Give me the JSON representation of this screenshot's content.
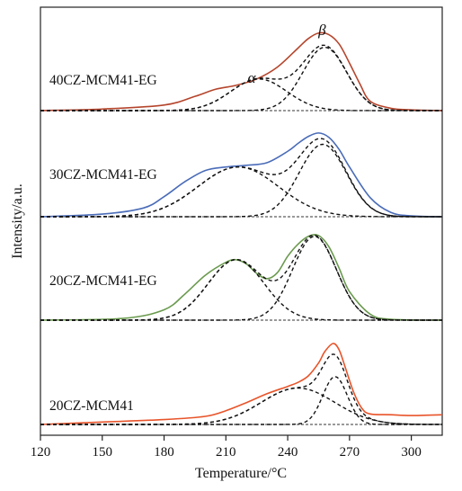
{
  "chart_data": {
    "type": "line",
    "xlabel": "Temperature/°C",
    "ylabel": "Intensity/a.u.",
    "xlim": [
      120,
      315
    ],
    "xticks": [
      120,
      150,
      180,
      210,
      240,
      270,
      300
    ],
    "grid": false,
    "legend": "none",
    "fit_line_color": "#111111",
    "panels": [
      {
        "name": "40CZ-MCM41-EG",
        "color": "#b5452c",
        "experimental": {
          "x": [
            120,
            150,
            180,
            195,
            205,
            215,
            225,
            235,
            245,
            250,
            255,
            260,
            265,
            270,
            275,
            280,
            290,
            300,
            315
          ],
          "y": [
            0.0,
            0.02,
            0.07,
            0.18,
            0.27,
            0.32,
            0.4,
            0.55,
            0.79,
            0.91,
            0.98,
            0.96,
            0.84,
            0.6,
            0.34,
            0.12,
            0.03,
            0.01,
            0.0
          ]
        },
        "peaks": [
          {
            "name": "α",
            "label": "α",
            "center": 226,
            "height": 0.4,
            "width": 32
          },
          {
            "name": "β",
            "label": "β",
            "center": 258,
            "height": 0.8,
            "width": 25
          }
        ]
      },
      {
        "name": "30CZ-MCM41-EG",
        "color": "#4a6cb8",
        "experimental": {
          "x": [
            120,
            150,
            170,
            180,
            190,
            200,
            210,
            220,
            230,
            240,
            245,
            250,
            255,
            260,
            265,
            270,
            280,
            290,
            300,
            315
          ],
          "y": [
            0.0,
            0.03,
            0.1,
            0.23,
            0.4,
            0.53,
            0.57,
            0.59,
            0.62,
            0.75,
            0.84,
            0.92,
            0.96,
            0.91,
            0.77,
            0.57,
            0.22,
            0.05,
            0.01,
            0.0
          ]
        },
        "peaks": [
          {
            "name": "α",
            "label": "",
            "center": 216,
            "height": 0.57,
            "width": 46
          },
          {
            "name": "β",
            "label": "",
            "center": 257,
            "height": 0.83,
            "width": 27
          }
        ]
      },
      {
        "name": "20CZ-MCM41-EG",
        "color": "#6a9a4e",
        "experimental": {
          "x": [
            120,
            160,
            180,
            190,
            200,
            210,
            215,
            220,
            225,
            230,
            235,
            240,
            245,
            250,
            255,
            260,
            265,
            270,
            280,
            290,
            315
          ],
          "y": [
            0.0,
            0.02,
            0.12,
            0.3,
            0.52,
            0.67,
            0.7,
            0.65,
            0.54,
            0.48,
            0.55,
            0.74,
            0.88,
            0.97,
            0.98,
            0.85,
            0.6,
            0.33,
            0.07,
            0.01,
            0.0
          ]
        },
        "peaks": [
          {
            "name": "α",
            "label": "",
            "center": 215,
            "height": 0.7,
            "width": 32
          },
          {
            "name": "β",
            "label": "",
            "center": 253,
            "height": 0.97,
            "width": 25
          }
        ]
      },
      {
        "name": "20CZ-MCM41",
        "color": "#e8542a",
        "experimental": {
          "x": [
            120,
            150,
            180,
            200,
            210,
            220,
            230,
            240,
            245,
            250,
            255,
            258,
            262,
            265,
            268,
            272,
            276,
            280,
            290,
            300,
            315
          ],
          "y": [
            0.0,
            0.03,
            0.06,
            0.1,
            0.17,
            0.27,
            0.38,
            0.47,
            0.52,
            0.6,
            0.76,
            0.9,
            1.0,
            0.92,
            0.7,
            0.4,
            0.2,
            0.13,
            0.12,
            0.11,
            0.12
          ]
        },
        "peaks": [
          {
            "name": "α",
            "label": "",
            "center": 245,
            "height": 0.45,
            "width": 42
          },
          {
            "name": "β",
            "label": "",
            "center": 263,
            "height": 0.59,
            "width": 14
          }
        ]
      }
    ]
  }
}
